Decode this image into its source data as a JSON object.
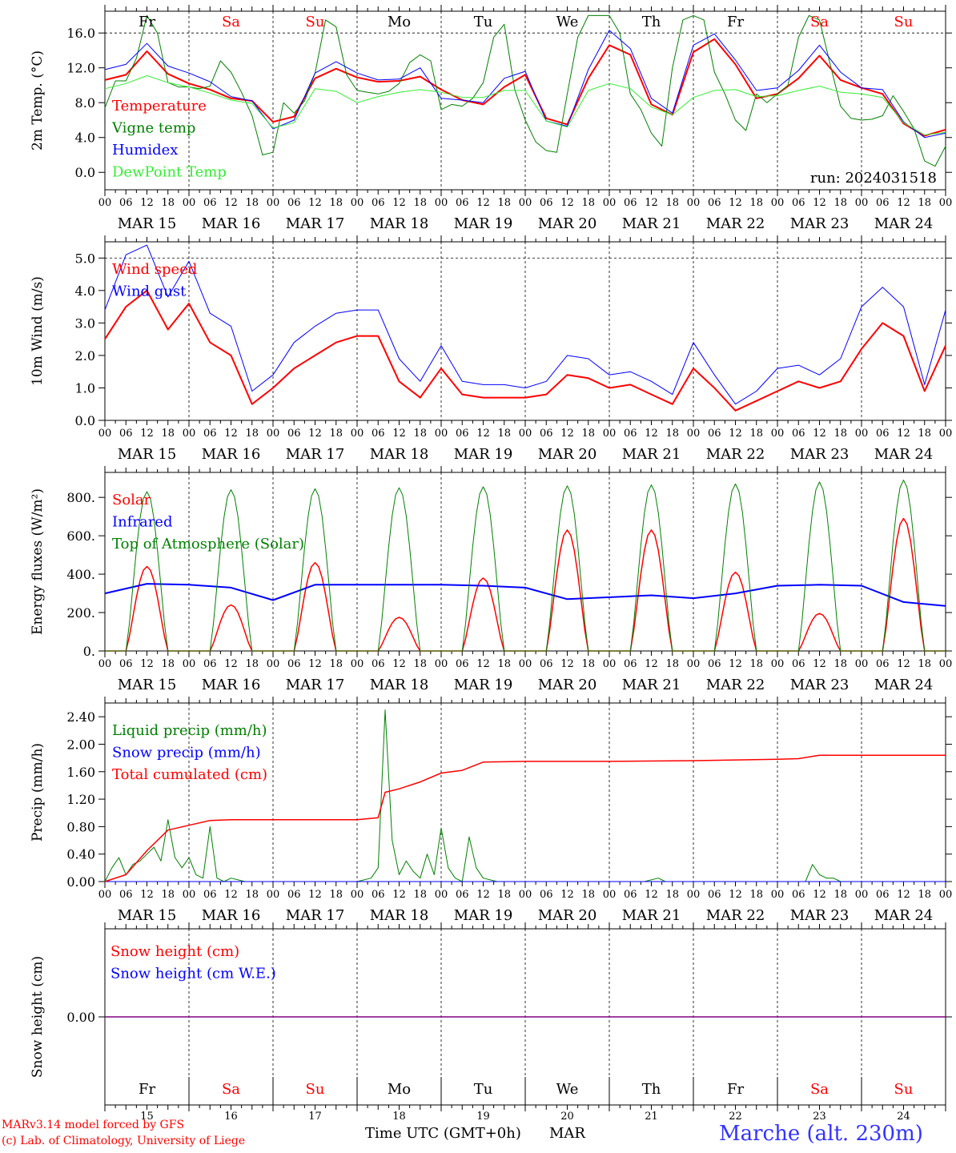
{
  "colors": {
    "red": "#ff0000",
    "green": "#008000",
    "blue": "#0000ff",
    "lightgreen": "#33ee33",
    "purple": "#800080",
    "weekend": "#ff0000",
    "station": "#3333ff"
  },
  "footer": {
    "model": "MARv3.14 model forced by GFS",
    "lab": "(c) Lab. of Climatology, University of Liege",
    "xlabel": "Time UTC (GMT+0h)",
    "month": "MAR",
    "station": "Marche (alt. 230m)"
  },
  "x_axis": {
    "hour_labels": [
      "00",
      "06",
      "12",
      "18"
    ],
    "end_label": "00",
    "dates": [
      "MAR 15",
      "MAR 16",
      "MAR 17",
      "MAR 18",
      "MAR 19",
      "MAR 20",
      "MAR 21",
      "MAR 22",
      "MAR 23",
      "MAR 24"
    ],
    "day_numbers": [
      "15",
      "16",
      "17",
      "18",
      "19",
      "20",
      "21",
      "22",
      "23",
      "24"
    ],
    "weekdays": [
      "Fr",
      "Sa",
      "Su",
      "Mo",
      "Tu",
      "We",
      "Th",
      "Fr",
      "Sa",
      "Su"
    ],
    "weekend": [
      false,
      true,
      true,
      false,
      false,
      false,
      false,
      false,
      true,
      true
    ]
  },
  "chart_data": [
    {
      "type": "line",
      "ylabel": "2m Temp. (°C)",
      "ylim": [
        -2.0,
        18.5
      ],
      "yticks": [
        0.0,
        4.0,
        8.0,
        12.0,
        16.0
      ],
      "ytick_labels": [
        "0.0",
        "4.0",
        "8.0",
        "12.0",
        "16.0"
      ],
      "y_grid": [
        16.0
      ],
      "annotation": "run: 2024031518",
      "series": [
        {
          "name": "Temperature",
          "color": "red",
          "width": 2,
          "x": [
            0,
            6,
            12,
            18,
            24,
            30,
            36,
            42,
            48,
            54,
            60,
            66,
            72,
            78,
            84,
            90,
            96,
            102,
            108,
            114,
            120,
            126,
            132,
            138,
            144,
            150,
            156,
            162,
            168,
            174,
            180,
            186,
            192,
            198,
            204,
            210,
            216,
            222,
            228,
            234,
            240
          ],
          "y": [
            10.6,
            11.2,
            13.9,
            11.3,
            10.2,
            9.5,
            8.5,
            8.2,
            5.8,
            6.4,
            10.8,
            11.9,
            10.9,
            10.4,
            10.5,
            11.0,
            9.5,
            8.3,
            7.8,
            9.8,
            11.2,
            6.2,
            5.5,
            10.8,
            14.6,
            13.5,
            7.8,
            6.6,
            13.8,
            15.3,
            12.4,
            8.5,
            9.0,
            10.8,
            13.4,
            10.6,
            9.7,
            9.0,
            5.6,
            4.2,
            4.9
          ]
        },
        {
          "name": "Vigne temp",
          "color": "green",
          "width": 1,
          "x": [
            0,
            3,
            6,
            9,
            12,
            15,
            18,
            21,
            24,
            27,
            30,
            33,
            36,
            39,
            42,
            45,
            48,
            51,
            54,
            57,
            60,
            63,
            66,
            69,
            72,
            75,
            78,
            81,
            84,
            87,
            90,
            93,
            96,
            99,
            102,
            105,
            108,
            111,
            114,
            117,
            120,
            123,
            126,
            129,
            132,
            135,
            138,
            141,
            144,
            147,
            150,
            153,
            156,
            159,
            162,
            165,
            168,
            171,
            174,
            177,
            180,
            183,
            186,
            189,
            192,
            195,
            198,
            201,
            204,
            207,
            210,
            213,
            216,
            219,
            222,
            225,
            228,
            231,
            234,
            237,
            240
          ],
          "y": [
            7.4,
            10.5,
            10.5,
            13.1,
            18.0,
            16.0,
            10.3,
            9.8,
            9.8,
            9.6,
            9.9,
            12.8,
            11.5,
            9.2,
            6.5,
            2.0,
            2.3,
            8.0,
            6.8,
            8.2,
            11.4,
            17.5,
            16.7,
            11.2,
            9.4,
            9.2,
            9.0,
            9.3,
            10.2,
            12.6,
            13.5,
            12.8,
            7.2,
            7.8,
            7.6,
            8.5,
            10.3,
            15.5,
            17.0,
            9.5,
            6.0,
            3.5,
            2.5,
            2.3,
            9.0,
            15.5,
            18.0,
            18.0,
            18.0,
            16.0,
            9.0,
            7.2,
            4.5,
            3.0,
            12.0,
            17.5,
            18.0,
            17.5,
            11.5,
            9.0,
            6.0,
            4.8,
            9.0,
            8.0,
            9.0,
            10.0,
            15.5,
            18.0,
            17.5,
            12.5,
            7.6,
            6.2,
            6.0,
            6.1,
            6.5,
            8.8,
            7.0,
            5.0,
            1.3,
            0.7,
            3.0
          ]
        },
        {
          "name": "Humidex",
          "color": "blue",
          "width": 1,
          "x": [
            0,
            6,
            12,
            18,
            24,
            30,
            36,
            42,
            48,
            54,
            60,
            66,
            72,
            78,
            84,
            90,
            96,
            102,
            108,
            114,
            120,
            126,
            132,
            138,
            144,
            150,
            156,
            162,
            168,
            174,
            180,
            186,
            192,
            198,
            204,
            210,
            216,
            222,
            228,
            234,
            240
          ],
          "y": [
            11.8,
            12.4,
            14.8,
            12.2,
            11.4,
            10.4,
            8.7,
            8.2,
            5.0,
            6.0,
            11.4,
            12.7,
            11.4,
            10.6,
            10.7,
            12.0,
            8.5,
            8.3,
            8.0,
            10.8,
            11.6,
            5.9,
            5.3,
            11.8,
            16.3,
            14.2,
            8.5,
            6.8,
            14.6,
            15.9,
            12.9,
            9.4,
            9.7,
            11.7,
            14.6,
            11.5,
            9.7,
            9.5,
            5.8,
            4.0,
            4.5
          ]
        },
        {
          "name": "DewPoint Temp",
          "color": "lightgreen",
          "width": 1,
          "x": [
            0,
            6,
            12,
            18,
            24,
            30,
            36,
            42,
            48,
            54,
            60,
            66,
            72,
            78,
            84,
            90,
            96,
            102,
            108,
            114,
            120,
            126,
            132,
            138,
            144,
            150,
            156,
            162,
            168,
            174,
            180,
            186,
            192,
            198,
            204,
            210,
            216,
            222,
            228,
            234,
            240
          ],
          "y": [
            9.6,
            10.2,
            11.1,
            10.3,
            9.8,
            9.1,
            8.3,
            7.9,
            5.1,
            5.7,
            9.6,
            9.3,
            8.0,
            8.7,
            9.2,
            9.5,
            9.2,
            8.6,
            8.6,
            9.4,
            9.4,
            5.9,
            5.2,
            9.4,
            10.2,
            9.6,
            7.5,
            6.6,
            8.6,
            9.4,
            9.5,
            8.7,
            8.8,
            9.4,
            9.9,
            9.2,
            9.0,
            8.6,
            5.7,
            4.3,
            4.6
          ]
        }
      ]
    },
    {
      "type": "line",
      "ylabel": "10m Wind (m/s)",
      "ylim": [
        0.0,
        5.5
      ],
      "yticks": [
        0.0,
        1.0,
        2.0,
        3.0,
        4.0,
        5.0
      ],
      "ytick_labels": [
        "0.0",
        "1.0",
        "2.0",
        "3.0",
        "4.0",
        "5.0"
      ],
      "y_grid": [
        5.0
      ],
      "series": [
        {
          "name": "Wind speed",
          "color": "red",
          "width": 2,
          "x": [
            0,
            6,
            12,
            18,
            24,
            30,
            36,
            42,
            48,
            54,
            60,
            66,
            72,
            78,
            84,
            90,
            96,
            102,
            108,
            114,
            120,
            126,
            132,
            138,
            144,
            150,
            156,
            162,
            168,
            174,
            180,
            186,
            192,
            198,
            204,
            210,
            216,
            222,
            228,
            234,
            240
          ],
          "y": [
            2.5,
            3.5,
            4.0,
            2.8,
            3.6,
            2.4,
            2.0,
            0.5,
            1.0,
            1.6,
            2.0,
            2.4,
            2.6,
            2.6,
            1.2,
            0.7,
            1.6,
            0.8,
            0.7,
            0.7,
            0.7,
            0.8,
            1.4,
            1.3,
            1.0,
            1.1,
            0.8,
            0.5,
            1.6,
            1.0,
            0.3,
            0.6,
            0.9,
            1.2,
            1.0,
            1.2,
            2.2,
            3.0,
            2.6,
            0.9,
            2.3
          ]
        },
        {
          "name": "Wind gust",
          "color": "blue",
          "width": 1,
          "x": [
            0,
            6,
            12,
            18,
            24,
            30,
            36,
            42,
            48,
            54,
            60,
            66,
            72,
            78,
            84,
            90,
            96,
            102,
            108,
            114,
            120,
            126,
            132,
            138,
            144,
            150,
            156,
            162,
            168,
            174,
            180,
            186,
            192,
            198,
            204,
            210,
            216,
            222,
            228,
            234,
            240
          ],
          "y": [
            3.4,
            5.1,
            5.4,
            3.8,
            4.9,
            3.3,
            2.9,
            0.9,
            1.4,
            2.4,
            2.9,
            3.3,
            3.4,
            3.4,
            1.9,
            1.2,
            2.3,
            1.2,
            1.1,
            1.1,
            1.0,
            1.2,
            2.0,
            1.9,
            1.4,
            1.5,
            1.2,
            0.8,
            2.4,
            1.4,
            0.5,
            0.9,
            1.6,
            1.7,
            1.4,
            1.9,
            3.5,
            4.1,
            3.5,
            1.1,
            3.4
          ]
        }
      ]
    },
    {
      "type": "line",
      "ylabel": "Energy fluxes (W/m²)",
      "ylim": [
        0,
        930
      ],
      "yticks": [
        0,
        200,
        400,
        600,
        800
      ],
      "ytick_labels": [
        "0.",
        "200.",
        "400.",
        "600.",
        "800."
      ],
      "y_grid": [],
      "series": [
        {
          "name": "Solar",
          "color": "red",
          "width": 1.5,
          "peaks": [
            440,
            240,
            460,
            175,
            380,
            630,
            630,
            410,
            195,
            690
          ],
          "note": "daily solar radiation, 06h-18h, peak values per day"
        },
        {
          "name": "Infrared",
          "color": "blue",
          "width": 2,
          "x": [
            0,
            12,
            24,
            36,
            48,
            60,
            72,
            84,
            96,
            108,
            120,
            132,
            144,
            156,
            168,
            180,
            192,
            204,
            216,
            228,
            240
          ],
          "y": [
            300,
            350,
            345,
            330,
            265,
            345,
            345,
            345,
            345,
            340,
            330,
            270,
            280,
            290,
            275,
            300,
            340,
            345,
            340,
            255,
            235
          ]
        },
        {
          "name": "Top of Atmosphere (Solar)",
          "color": "green",
          "width": 1,
          "peaks": [
            830,
            840,
            845,
            850,
            855,
            860,
            865,
            870,
            880,
            890
          ],
          "note": "daily top-of-atmosphere solar, 06h-18h, peak values per day"
        }
      ]
    },
    {
      "type": "line",
      "ylabel": "Precip (mm/h)",
      "ylim": [
        0.0,
        2.6
      ],
      "yticks": [
        0.0,
        0.4,
        0.8,
        1.2,
        1.6,
        2.0,
        2.4
      ],
      "ytick_labels": [
        "0.00",
        "0.40",
        "0.80",
        "1.20",
        "1.60",
        "2.00",
        "2.40"
      ],
      "y_grid": [],
      "series": [
        {
          "name": "Liquid precip (mm/h)",
          "color": "green",
          "width": 1,
          "x": [
            0,
            2,
            4,
            6,
            8,
            10,
            12,
            14,
            16,
            18,
            20,
            22,
            24,
            26,
            28,
            30,
            32,
            34,
            36,
            40,
            48,
            60,
            72,
            76,
            78,
            80,
            82,
            84,
            86,
            88,
            90,
            92,
            94,
            96,
            98,
            100,
            102,
            104,
            106,
            108,
            112,
            144,
            154,
            158,
            160,
            162,
            168,
            196,
            200,
            202,
            204,
            206,
            208,
            210,
            220,
            240
          ],
          "y": [
            0.0,
            0.2,
            0.35,
            0.1,
            0.25,
            0.3,
            0.4,
            0.5,
            0.3,
            0.9,
            0.35,
            0.2,
            0.35,
            0.1,
            0.05,
            0.8,
            0.05,
            0.0,
            0.05,
            0.0,
            0.0,
            0.0,
            0.0,
            0.05,
            0.2,
            2.5,
            0.6,
            0.1,
            0.3,
            0.15,
            0.05,
            0.4,
            0.1,
            0.78,
            0.2,
            0.05,
            0.0,
            0.65,
            0.2,
            0.05,
            0.0,
            0.0,
            0.0,
            0.05,
            0.0,
            0.0,
            0.0,
            0.0,
            0.0,
            0.25,
            0.1,
            0.05,
            0.05,
            0.0,
            0.0,
            0.0
          ]
        },
        {
          "name": "Snow precip (mm/h)",
          "color": "blue",
          "width": 1,
          "x": [
            0,
            240
          ],
          "y": [
            0.0,
            0.0
          ]
        },
        {
          "name": "Total cumulated (cm)",
          "color": "red",
          "width": 1.5,
          "x": [
            0,
            6,
            12,
            18,
            24,
            30,
            36,
            48,
            60,
            72,
            78,
            80,
            84,
            90,
            96,
            102,
            108,
            120,
            144,
            168,
            192,
            198,
            204,
            240
          ],
          "y": [
            0.0,
            0.1,
            0.45,
            0.75,
            0.82,
            0.89,
            0.9,
            0.9,
            0.9,
            0.9,
            0.93,
            1.3,
            1.35,
            1.45,
            1.58,
            1.62,
            1.74,
            1.75,
            1.75,
            1.76,
            1.78,
            1.79,
            1.84,
            1.84
          ]
        }
      ]
    },
    {
      "type": "line",
      "ylabel": "Snow height (cm)",
      "ylim": [
        -1.0,
        1.0
      ],
      "yticks": [
        0.0
      ],
      "ytick_labels": [
        "0.00"
      ],
      "y_grid": [],
      "series": [
        {
          "name": "Snow height (cm)",
          "color": "red",
          "width": 1,
          "x": [
            0,
            240
          ],
          "y": [
            0.0,
            0.0
          ]
        },
        {
          "name": "Snow height (cm W.E.)",
          "color": "blue",
          "width": 1,
          "x": [
            0,
            240
          ],
          "y": [
            0.0,
            0.0
          ]
        }
      ]
    }
  ]
}
